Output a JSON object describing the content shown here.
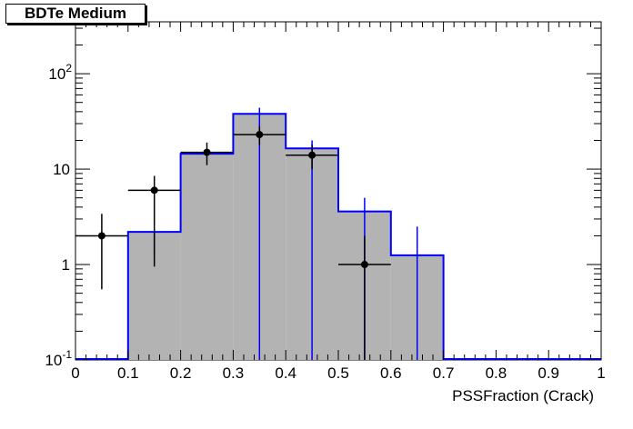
{
  "chart_data": {
    "type": "histogram",
    "title": "BDTe Medium",
    "xlabel": "PSSFraction (Crack)",
    "ylabel": "",
    "xlim": [
      0,
      1
    ],
    "ylim": [
      0.1,
      350
    ],
    "yscale": "log",
    "grid": false,
    "x_ticks": [
      "0",
      "0.1",
      "0.2",
      "0.3",
      "0.4",
      "0.5",
      "0.6",
      "0.7",
      "0.8",
      "0.9",
      "1"
    ],
    "y_ticks": [
      {
        "value": 0.1,
        "label": "10",
        "exp": "-1"
      },
      {
        "value": 1,
        "label": "1",
        "exp": ""
      },
      {
        "value": 10,
        "label": "10",
        "exp": ""
      },
      {
        "value": 100,
        "label": "10",
        "exp": "2"
      }
    ],
    "bin_edges": [
      0,
      0.1,
      0.2,
      0.3,
      0.4,
      0.5,
      0.6,
      0.7,
      0.8,
      0.9,
      1.0
    ],
    "series": [
      {
        "kind": "filled_histogram",
        "fill_color": "#b3b3b3",
        "line_color": "#0000ff",
        "values": [
          0,
          2.2,
          14.5,
          38,
          16.5,
          3.6,
          1.25,
          0,
          0,
          0
        ],
        "err_low": [
          0,
          1.3,
          0,
          0,
          0,
          0,
          0,
          0,
          0,
          0
        ],
        "err_high": [
          0,
          0,
          0,
          44,
          20,
          5.0,
          2.5,
          0,
          0,
          0
        ]
      },
      {
        "kind": "data_points",
        "marker_color": "#000000",
        "x": [
          0.05,
          0.15,
          0.25,
          0.35,
          0.45,
          0.55
        ],
        "y": [
          2.0,
          6.0,
          15.0,
          23.0,
          14.0,
          1.0
        ],
        "x_err": [
          0.05,
          0.05,
          0.05,
          0.05,
          0.05,
          0.05
        ],
        "y_low": [
          0.55,
          0.95,
          11.0,
          18.0,
          10.0,
          0.1
        ],
        "y_high": [
          3.4,
          8.5,
          19.0,
          28.0,
          18.0,
          2.0
        ]
      }
    ]
  }
}
